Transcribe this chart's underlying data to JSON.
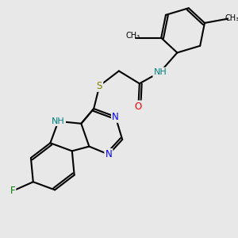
{
  "background_color": "#e8e8e8",
  "bond_color": "#000000",
  "atom_colors": {
    "N": "#0000ff",
    "O": "#ff0000",
    "S": "#808000",
    "F": "#008000",
    "NH": "#008080",
    "C": "#000000"
  },
  "font_size": 8.5,
  "lw": 1.5
}
